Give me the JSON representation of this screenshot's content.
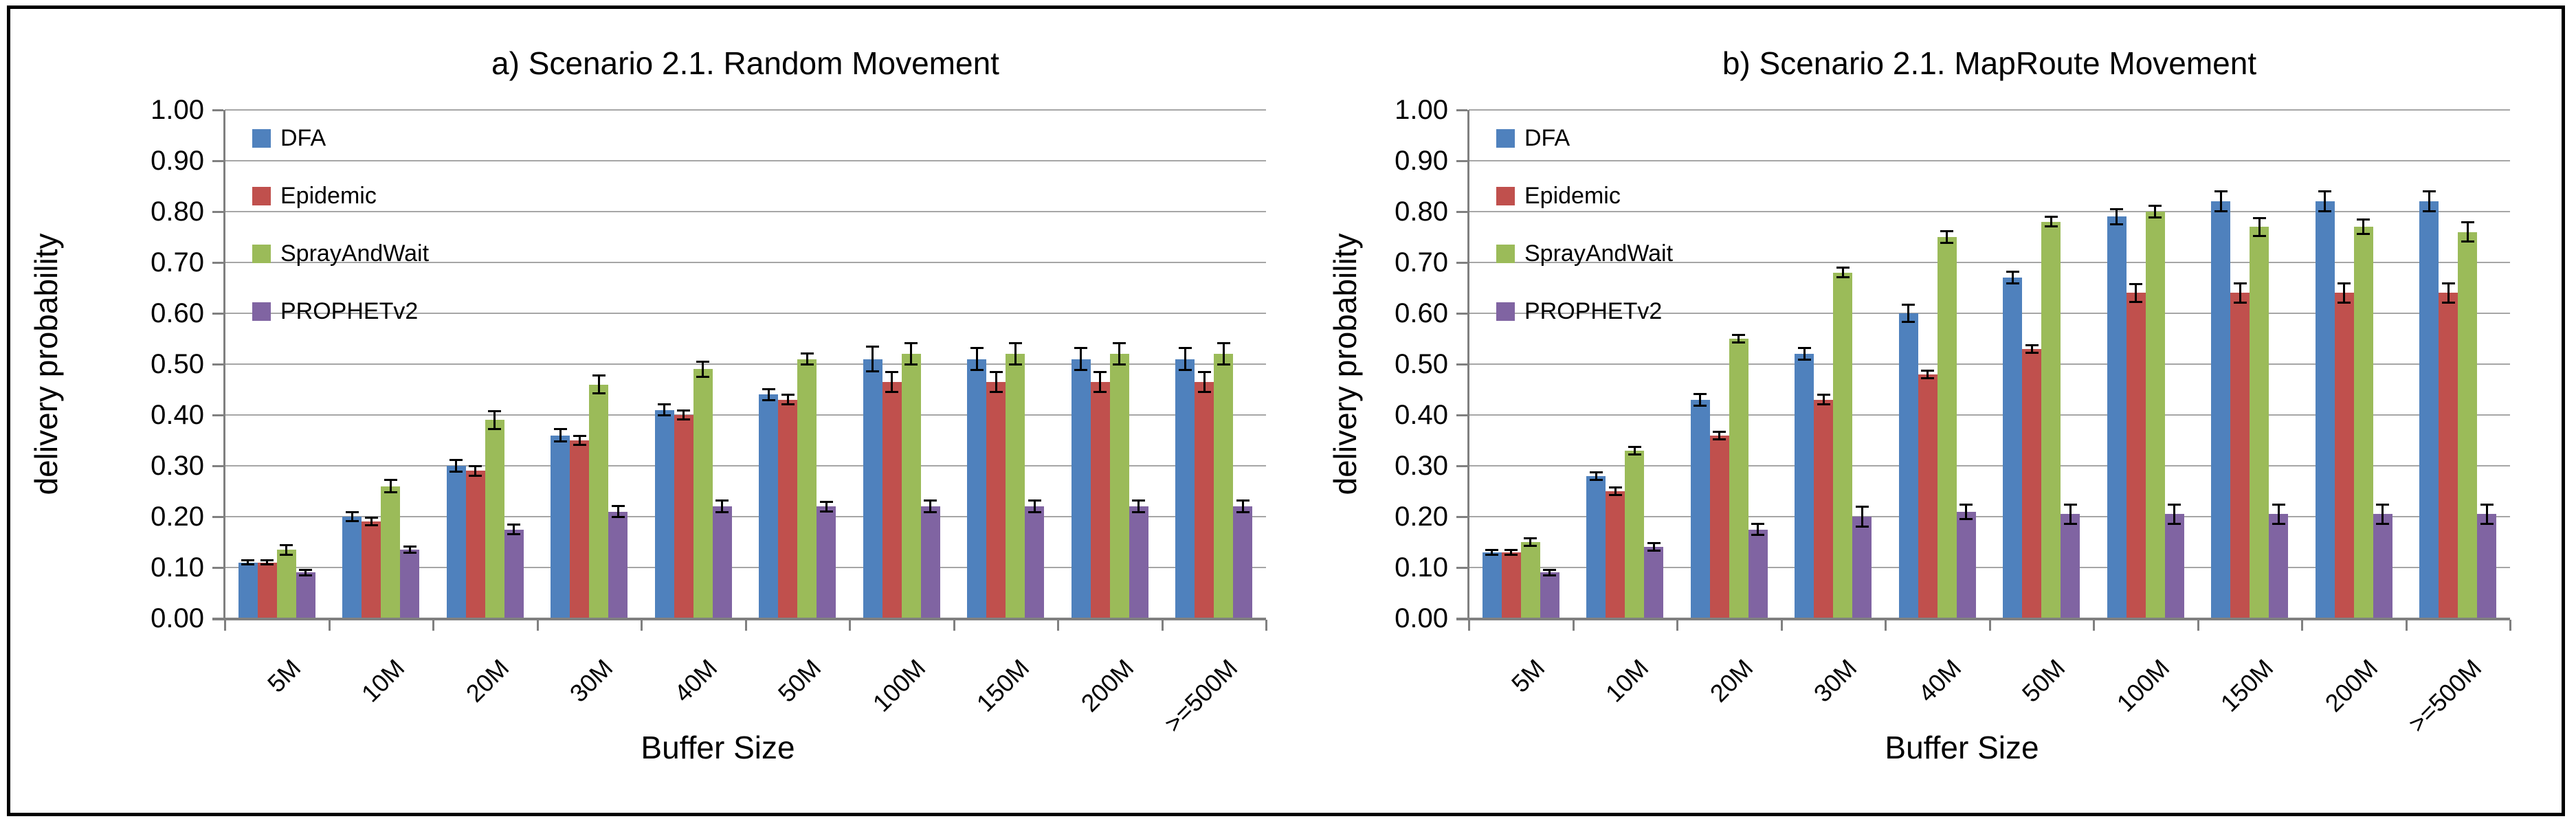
{
  "figure": {
    "y_axis_label": "delivery probability",
    "x_axis_label": "Buffer Size",
    "colors": {
      "dfa": "#4F81BD",
      "epidemic": "#C0504D",
      "sprayandwait": "#9BBB59",
      "prophetv2": "#8064A2",
      "gridline": "#A6A6A6",
      "axis": "#808080",
      "frame": "#000000",
      "background": "#FFFFFF"
    }
  },
  "chart_data": [
    {
      "type": "bar",
      "title": "a) Scenario 2.1. Random Movement",
      "xlabel": "Buffer Size",
      "ylabel": "delivery probability",
      "ylim": [
        0,
        1
      ],
      "ytick_step": 0.1,
      "y_tick_labels": [
        "0.00",
        "0.10",
        "0.20",
        "0.30",
        "0.40",
        "0.50",
        "0.60",
        "0.70",
        "0.80",
        "0.90",
        "1.00"
      ],
      "grid": true,
      "legend_position": "top-left",
      "error_bars": true,
      "categories": [
        "5M",
        "10M",
        "20M",
        "30M",
        "40M",
        "50M",
        "100M",
        "150M",
        "200M",
        ">=500M"
      ],
      "series": [
        {
          "name": "DFA",
          "color": "#4F81BD",
          "values": [
            0.11,
            0.2,
            0.3,
            0.36,
            0.41,
            0.44,
            0.51,
            0.51,
            0.51,
            0.51
          ],
          "errors": [
            0.005,
            0.01,
            0.012,
            0.013,
            0.012,
            0.012,
            0.025,
            0.022,
            0.022,
            0.022
          ]
        },
        {
          "name": "Epidemic",
          "color": "#C0504D",
          "values": [
            0.11,
            0.19,
            0.29,
            0.35,
            0.4,
            0.43,
            0.465,
            0.465,
            0.465,
            0.465
          ],
          "errors": [
            0.005,
            0.008,
            0.01,
            0.01,
            0.01,
            0.01,
            0.02,
            0.02,
            0.02,
            0.02
          ]
        },
        {
          "name": "SprayAndWait",
          "color": "#9BBB59",
          "values": [
            0.135,
            0.26,
            0.39,
            0.46,
            0.49,
            0.51,
            0.52,
            0.52,
            0.52,
            0.52
          ],
          "errors": [
            0.01,
            0.013,
            0.018,
            0.018,
            0.015,
            0.012,
            0.022,
            0.022,
            0.022,
            0.022
          ]
        },
        {
          "name": "PROPHETv2",
          "color": "#8064A2",
          "values": [
            0.09,
            0.135,
            0.175,
            0.21,
            0.22,
            0.22,
            0.22,
            0.22,
            0.22,
            0.22
          ],
          "errors": [
            0.006,
            0.007,
            0.01,
            0.012,
            0.012,
            0.01,
            0.012,
            0.012,
            0.012,
            0.012
          ]
        }
      ]
    },
    {
      "type": "bar",
      "title": "b) Scenario 2.1. MapRoute Movement",
      "xlabel": "Buffer Size",
      "ylabel": "delivery probability",
      "ylim": [
        0,
        1
      ],
      "ytick_step": 0.1,
      "y_tick_labels": [
        "0.00",
        "0.10",
        "0.20",
        "0.30",
        "0.40",
        "0.50",
        "0.60",
        "0.70",
        "0.80",
        "0.90",
        "1.00"
      ],
      "grid": true,
      "legend_position": "top-left",
      "error_bars": true,
      "categories": [
        "5M",
        "10M",
        "20M",
        "30M",
        "40M",
        "50M",
        "100M",
        "150M",
        "200M",
        ">=500M"
      ],
      "series": [
        {
          "name": "DFA",
          "color": "#4F81BD",
          "values": [
            0.13,
            0.28,
            0.43,
            0.52,
            0.6,
            0.67,
            0.79,
            0.82,
            0.82,
            0.82
          ],
          "errors": [
            0.005,
            0.008,
            0.012,
            0.012,
            0.017,
            0.012,
            0.015,
            0.02,
            0.02,
            0.02
          ]
        },
        {
          "name": "Epidemic",
          "color": "#C0504D",
          "values": [
            0.13,
            0.25,
            0.36,
            0.43,
            0.48,
            0.53,
            0.64,
            0.64,
            0.64,
            0.64
          ],
          "errors": [
            0.005,
            0.008,
            0.008,
            0.01,
            0.008,
            0.008,
            0.018,
            0.02,
            0.02,
            0.02
          ]
        },
        {
          "name": "SprayAndWait",
          "color": "#9BBB59",
          "values": [
            0.15,
            0.33,
            0.55,
            0.68,
            0.75,
            0.78,
            0.8,
            0.77,
            0.77,
            0.76
          ],
          "errors": [
            0.008,
            0.008,
            0.008,
            0.01,
            0.012,
            0.01,
            0.012,
            0.018,
            0.015,
            0.02
          ]
        },
        {
          "name": "PROPHETv2",
          "color": "#8064A2",
          "values": [
            0.09,
            0.14,
            0.175,
            0.2,
            0.21,
            0.205,
            0.205,
            0.205,
            0.205,
            0.205
          ],
          "errors": [
            0.006,
            0.008,
            0.012,
            0.02,
            0.015,
            0.02,
            0.02,
            0.02,
            0.02,
            0.02
          ]
        }
      ]
    }
  ]
}
